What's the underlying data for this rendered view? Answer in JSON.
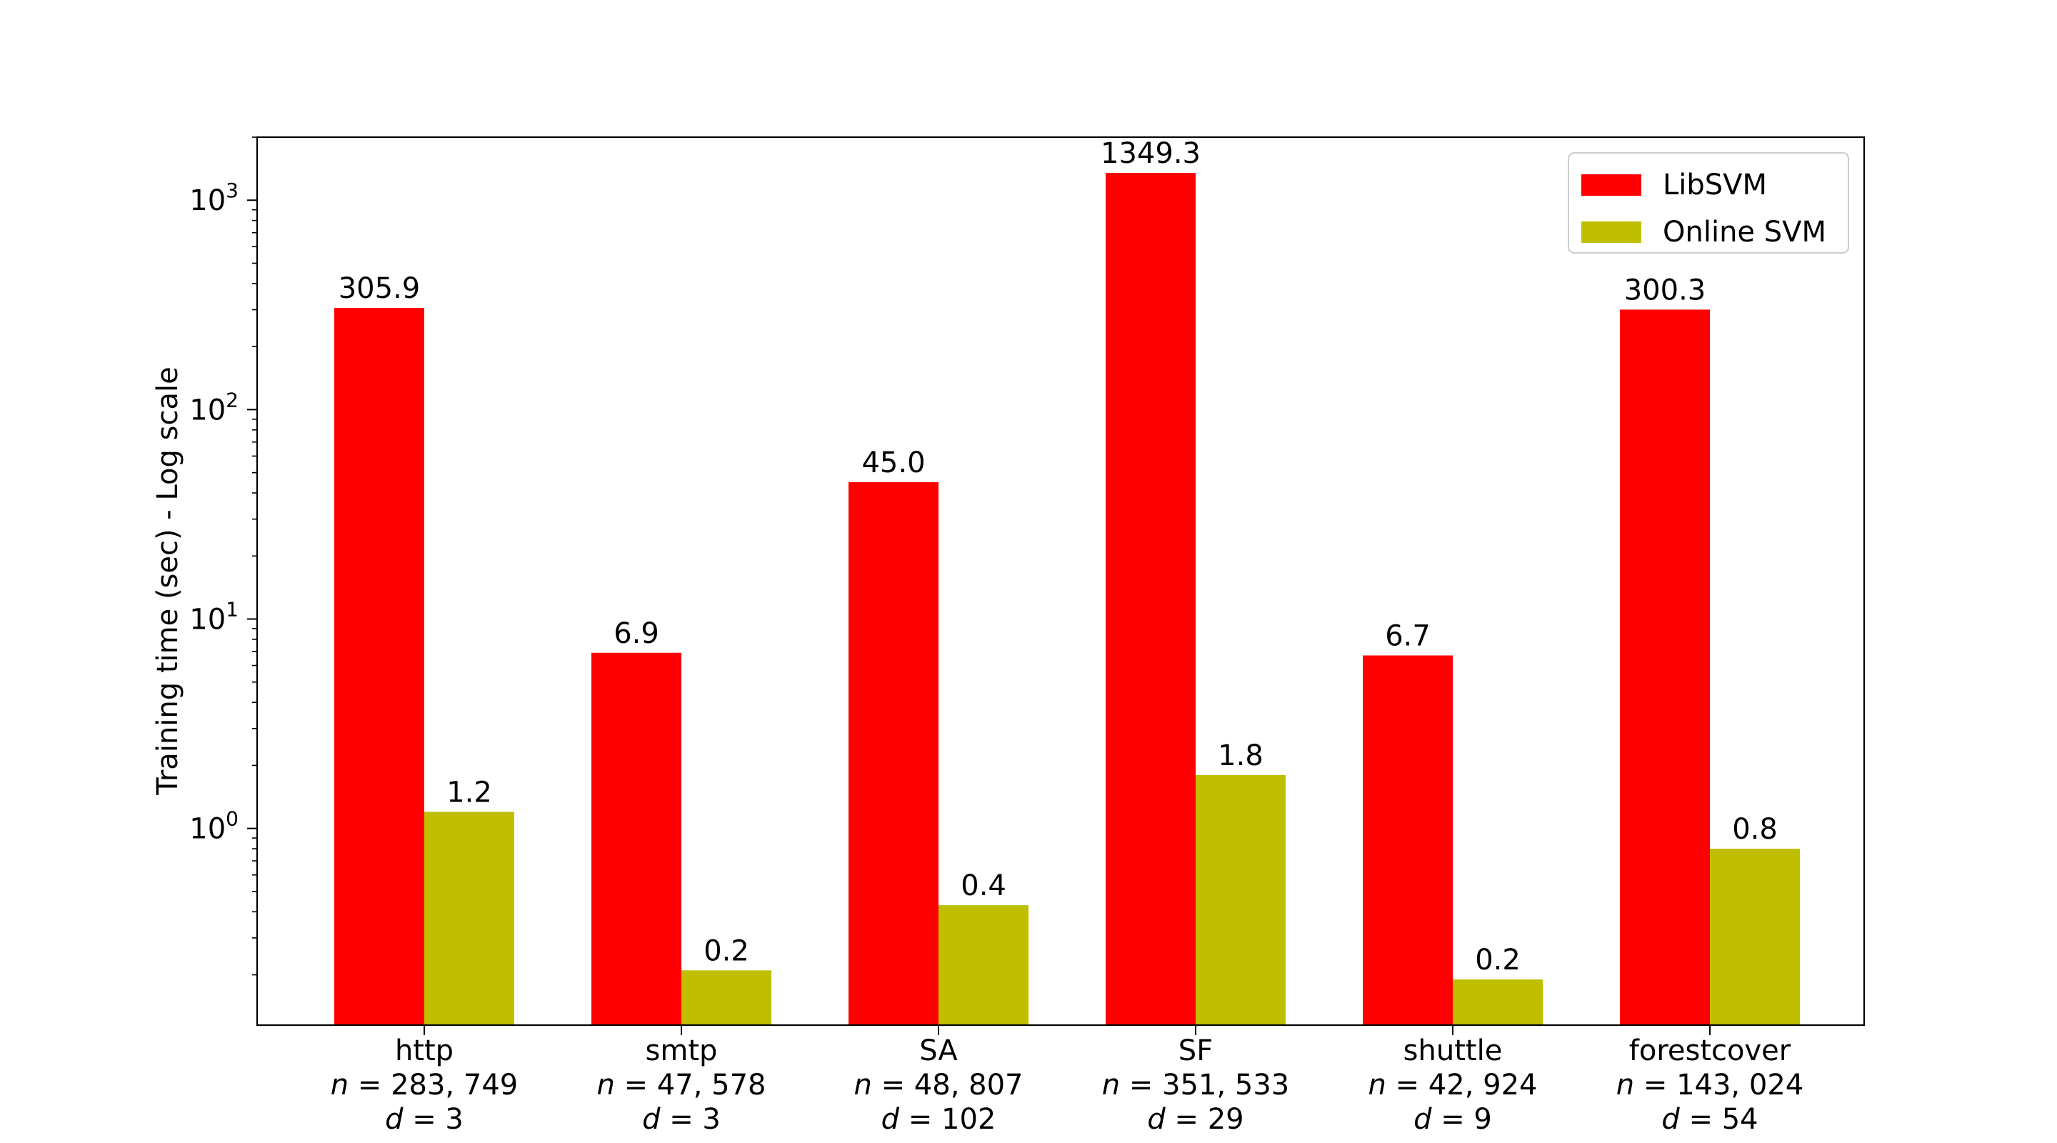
{
  "chart_data": {
    "type": "bar",
    "title": "",
    "xlabel": "",
    "ylabel": "Training time (sec) - Log scale",
    "yscale": "log",
    "ylim": [
      0.115,
      2000
    ],
    "yticks": [
      {
        "value": 1,
        "base": "10",
        "exp": "0"
      },
      {
        "value": 10,
        "base": "10",
        "exp": "1"
      },
      {
        "value": 100,
        "base": "10",
        "exp": "2"
      },
      {
        "value": 1000,
        "base": "10",
        "exp": "3"
      }
    ],
    "categories": [
      {
        "name": "http",
        "n": "283, 749",
        "d": "3"
      },
      {
        "name": "smtp",
        "n": "47, 578",
        "d": "3"
      },
      {
        "name": "SA",
        "n": "48, 807",
        "d": "102"
      },
      {
        "name": "SF",
        "n": "351, 533",
        "d": "29"
      },
      {
        "name": "shuttle",
        "n": "42, 924",
        "d": "9"
      },
      {
        "name": "forestcover",
        "n": "143, 024",
        "d": "54"
      }
    ],
    "series": [
      {
        "name": "LibSVM",
        "color": "#ff0000",
        "values": [
          305.9,
          6.9,
          45.0,
          1349.3,
          6.7,
          300.3
        ],
        "labels": [
          "305.9",
          "6.9",
          "45.0",
          "1349.3",
          "6.7",
          "300.3"
        ]
      },
      {
        "name": "Online SVM",
        "color": "#bfbf00",
        "values": [
          1.2,
          0.21,
          0.43,
          1.8,
          0.19,
          0.8
        ],
        "labels": [
          "1.2",
          "0.2",
          "0.4",
          "1.8",
          "0.2",
          "0.8"
        ]
      }
    ],
    "legend": {
      "position": "top-right"
    },
    "grid": false
  }
}
